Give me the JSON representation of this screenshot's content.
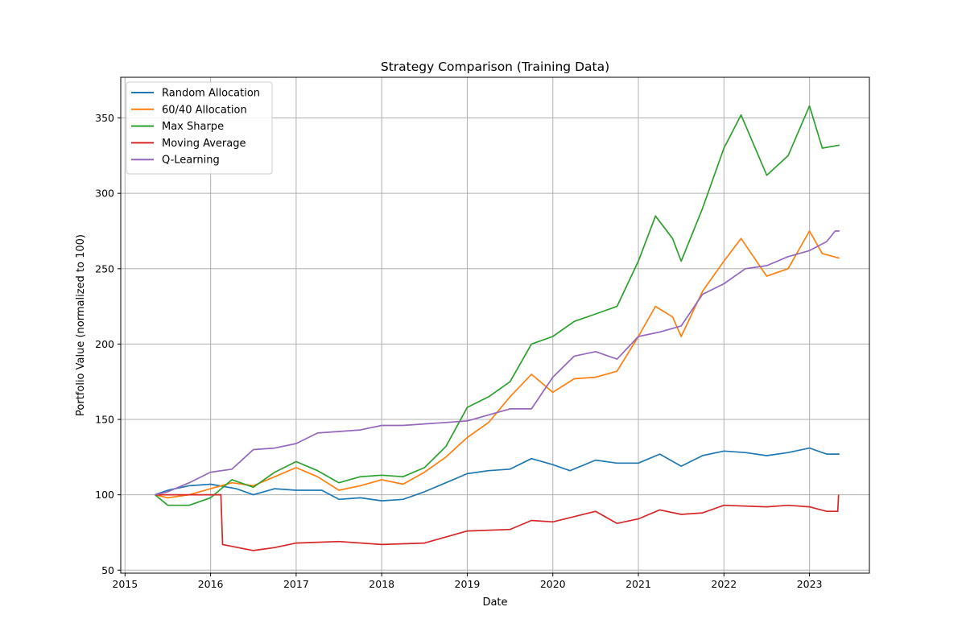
{
  "chart_data": {
    "type": "line",
    "title": "Strategy Comparison (Training Data)",
    "xlabel": "Date",
    "ylabel": "Portfolio Value (normalized to 100)",
    "xlim": [
      2014.95,
      2023.7
    ],
    "ylim": [
      48,
      377
    ],
    "x_ticks": [
      2015,
      2016,
      2017,
      2018,
      2019,
      2020,
      2021,
      2022,
      2023
    ],
    "x_tick_labels": [
      "2015",
      "2016",
      "2017",
      "2018",
      "2019",
      "2020",
      "2021",
      "2022",
      "2023"
    ],
    "y_ticks": [
      50,
      100,
      150,
      200,
      250,
      300,
      350
    ],
    "y_tick_labels": [
      "50",
      "100",
      "150",
      "200",
      "250",
      "300",
      "350"
    ],
    "grid": true,
    "legend_position": "top-left",
    "series": [
      {
        "name": "Random Allocation",
        "color": "#1f77b4",
        "points": [
          [
            2015.35,
            100
          ],
          [
            2015.5,
            103
          ],
          [
            2015.75,
            106
          ],
          [
            2016.0,
            107
          ],
          [
            2016.3,
            104
          ],
          [
            2016.5,
            100
          ],
          [
            2016.75,
            104
          ],
          [
            2017.0,
            103
          ],
          [
            2017.3,
            103
          ],
          [
            2017.5,
            97
          ],
          [
            2017.75,
            98
          ],
          [
            2018.0,
            96
          ],
          [
            2018.25,
            97
          ],
          [
            2018.5,
            102
          ],
          [
            2018.75,
            108
          ],
          [
            2019.0,
            114
          ],
          [
            2019.25,
            116
          ],
          [
            2019.5,
            117
          ],
          [
            2019.75,
            124
          ],
          [
            2020.0,
            120
          ],
          [
            2020.2,
            116
          ],
          [
            2020.5,
            123
          ],
          [
            2020.75,
            121
          ],
          [
            2021.0,
            121
          ],
          [
            2021.25,
            127
          ],
          [
            2021.5,
            119
          ],
          [
            2021.75,
            126
          ],
          [
            2022.0,
            129
          ],
          [
            2022.25,
            128
          ],
          [
            2022.5,
            126
          ],
          [
            2022.75,
            128
          ],
          [
            2023.0,
            131
          ],
          [
            2023.2,
            127
          ],
          [
            2023.35,
            127
          ]
        ]
      },
      {
        "name": "60/40 Allocation",
        "color": "#ff7f0e",
        "points": [
          [
            2015.35,
            100
          ],
          [
            2015.5,
            98
          ],
          [
            2015.75,
            100
          ],
          [
            2016.0,
            104
          ],
          [
            2016.25,
            108
          ],
          [
            2016.5,
            106
          ],
          [
            2016.75,
            112
          ],
          [
            2017.0,
            118
          ],
          [
            2017.25,
            112
          ],
          [
            2017.5,
            103
          ],
          [
            2017.75,
            106
          ],
          [
            2018.0,
            110
          ],
          [
            2018.25,
            107
          ],
          [
            2018.5,
            115
          ],
          [
            2018.75,
            125
          ],
          [
            2019.0,
            138
          ],
          [
            2019.25,
            148
          ],
          [
            2019.5,
            165
          ],
          [
            2019.75,
            180
          ],
          [
            2020.0,
            168
          ],
          [
            2020.25,
            177
          ],
          [
            2020.5,
            178
          ],
          [
            2020.75,
            182
          ],
          [
            2021.0,
            205
          ],
          [
            2021.2,
            225
          ],
          [
            2021.4,
            218
          ],
          [
            2021.5,
            205
          ],
          [
            2021.75,
            235
          ],
          [
            2022.0,
            255
          ],
          [
            2022.2,
            270
          ],
          [
            2022.5,
            245
          ],
          [
            2022.75,
            250
          ],
          [
            2023.0,
            275
          ],
          [
            2023.15,
            260
          ],
          [
            2023.35,
            257
          ]
        ]
      },
      {
        "name": "Max Sharpe",
        "color": "#2ca02c",
        "points": [
          [
            2015.35,
            100
          ],
          [
            2015.5,
            93
          ],
          [
            2015.75,
            93
          ],
          [
            2016.0,
            98
          ],
          [
            2016.25,
            110
          ],
          [
            2016.5,
            105
          ],
          [
            2016.75,
            115
          ],
          [
            2017.0,
            122
          ],
          [
            2017.25,
            116
          ],
          [
            2017.5,
            108
          ],
          [
            2017.75,
            112
          ],
          [
            2018.0,
            113
          ],
          [
            2018.25,
            112
          ],
          [
            2018.5,
            118
          ],
          [
            2018.75,
            132
          ],
          [
            2019.0,
            158
          ],
          [
            2019.25,
            165
          ],
          [
            2019.5,
            175
          ],
          [
            2019.75,
            200
          ],
          [
            2020.0,
            205
          ],
          [
            2020.25,
            215
          ],
          [
            2020.5,
            220
          ],
          [
            2020.75,
            225
          ],
          [
            2021.0,
            255
          ],
          [
            2021.2,
            285
          ],
          [
            2021.4,
            270
          ],
          [
            2021.5,
            255
          ],
          [
            2021.75,
            290
          ],
          [
            2022.0,
            330
          ],
          [
            2022.2,
            352
          ],
          [
            2022.5,
            312
          ],
          [
            2022.75,
            325
          ],
          [
            2023.0,
            358
          ],
          [
            2023.15,
            330
          ],
          [
            2023.35,
            332
          ]
        ]
      },
      {
        "name": "Moving Average",
        "color": "#d62728",
        "points": [
          [
            2015.35,
            100
          ],
          [
            2016.12,
            100
          ],
          [
            2016.14,
            67
          ],
          [
            2016.5,
            63
          ],
          [
            2016.75,
            65
          ],
          [
            2017.0,
            68
          ],
          [
            2017.5,
            69
          ],
          [
            2018.0,
            67
          ],
          [
            2018.5,
            68
          ],
          [
            2018.75,
            72
          ],
          [
            2019.0,
            76
          ],
          [
            2019.5,
            77
          ],
          [
            2019.75,
            83
          ],
          [
            2020.0,
            82
          ],
          [
            2020.5,
            89
          ],
          [
            2020.75,
            81
          ],
          [
            2021.0,
            84
          ],
          [
            2021.25,
            90
          ],
          [
            2021.5,
            87
          ],
          [
            2021.75,
            88
          ],
          [
            2022.0,
            93
          ],
          [
            2022.5,
            92
          ],
          [
            2022.75,
            93
          ],
          [
            2023.0,
            92
          ],
          [
            2023.2,
            89
          ],
          [
            2023.33,
            89
          ],
          [
            2023.34,
            100
          ]
        ]
      },
      {
        "name": "Q-Learning",
        "color": "#9467bd",
        "points": [
          [
            2015.35,
            100
          ],
          [
            2015.5,
            102
          ],
          [
            2015.75,
            108
          ],
          [
            2016.0,
            115
          ],
          [
            2016.25,
            117
          ],
          [
            2016.5,
            130
          ],
          [
            2016.75,
            131
          ],
          [
            2017.0,
            134
          ],
          [
            2017.25,
            141
          ],
          [
            2017.5,
            142
          ],
          [
            2017.75,
            143
          ],
          [
            2018.0,
            146
          ],
          [
            2018.25,
            146
          ],
          [
            2018.5,
            147
          ],
          [
            2018.75,
            148
          ],
          [
            2019.0,
            149
          ],
          [
            2019.5,
            157
          ],
          [
            2019.75,
            157
          ],
          [
            2020.0,
            178
          ],
          [
            2020.25,
            192
          ],
          [
            2020.5,
            195
          ],
          [
            2020.75,
            190
          ],
          [
            2021.0,
            205
          ],
          [
            2021.25,
            208
          ],
          [
            2021.5,
            212
          ],
          [
            2021.75,
            233
          ],
          [
            2022.0,
            240
          ],
          [
            2022.25,
            250
          ],
          [
            2022.5,
            252
          ],
          [
            2022.75,
            258
          ],
          [
            2023.0,
            262
          ],
          [
            2023.2,
            268
          ],
          [
            2023.3,
            275
          ],
          [
            2023.35,
            275
          ]
        ]
      }
    ]
  }
}
